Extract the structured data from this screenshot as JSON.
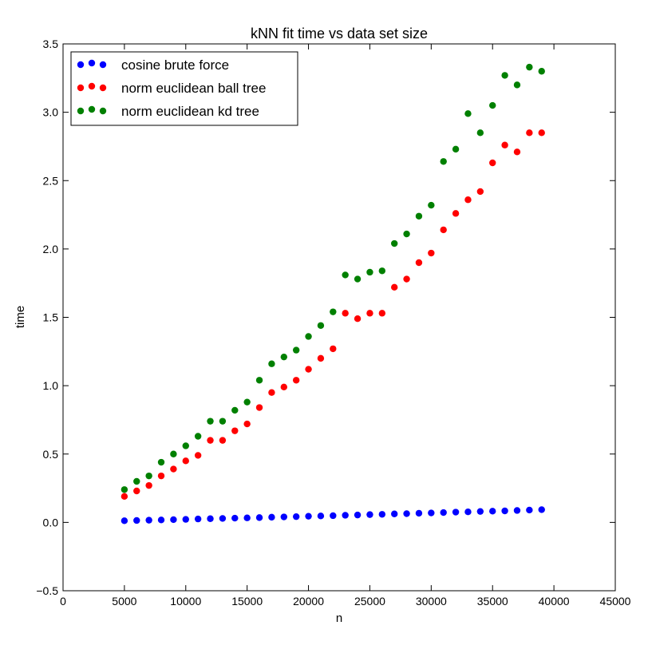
{
  "chart_data": {
    "type": "scatter",
    "title": "kNN fit time vs data set size",
    "xlabel": "n",
    "ylabel": "time",
    "xlim": [
      0,
      45000
    ],
    "ylim": [
      -0.5,
      3.5
    ],
    "xticks": [
      0,
      5000,
      10000,
      15000,
      20000,
      25000,
      30000,
      35000,
      40000,
      45000
    ],
    "yticks": [
      -0.5,
      0.0,
      0.5,
      1.0,
      1.5,
      2.0,
      2.5,
      3.0,
      3.5
    ],
    "ytick_labels": [
      "−0.5",
      "0.0",
      "0.5",
      "1.0",
      "1.5",
      "2.0",
      "2.5",
      "3.0",
      "3.5"
    ],
    "grid": false,
    "legend_position": "top-left",
    "x": [
      5000,
      6000,
      7000,
      8000,
      9000,
      10000,
      11000,
      12000,
      13000,
      14000,
      15000,
      16000,
      17000,
      18000,
      19000,
      20000,
      21000,
      22000,
      23000,
      24000,
      25000,
      26000,
      27000,
      28000,
      29000,
      30000,
      31000,
      32000,
      33000,
      34000,
      35000,
      36000,
      37000,
      38000,
      39000
    ],
    "series": [
      {
        "name": "cosine brute force",
        "color": "#0000ff",
        "values": [
          0.012,
          0.014,
          0.016,
          0.018,
          0.02,
          0.022,
          0.025,
          0.027,
          0.029,
          0.031,
          0.033,
          0.035,
          0.038,
          0.04,
          0.042,
          0.045,
          0.047,
          0.049,
          0.052,
          0.054,
          0.057,
          0.059,
          0.062,
          0.064,
          0.067,
          0.069,
          0.072,
          0.075,
          0.077,
          0.08,
          0.082,
          0.084,
          0.087,
          0.09,
          0.093
        ]
      },
      {
        "name": "norm euclidean ball tree",
        "color": "#ff0000",
        "values": [
          0.19,
          0.23,
          0.27,
          0.34,
          0.39,
          0.45,
          0.49,
          0.6,
          0.6,
          0.67,
          0.72,
          0.84,
          0.95,
          0.99,
          1.04,
          1.12,
          1.2,
          1.27,
          1.53,
          1.49,
          1.53,
          1.53,
          1.72,
          1.78,
          1.9,
          1.97,
          2.14,
          2.26,
          2.36,
          2.42,
          2.63,
          2.76,
          2.71,
          2.85,
          2.85
        ]
      },
      {
        "name": "norm euclidean kd tree",
        "color": "#008000",
        "values": [
          0.24,
          0.3,
          0.34,
          0.44,
          0.5,
          0.56,
          0.63,
          0.74,
          0.74,
          0.82,
          0.88,
          1.04,
          1.16,
          1.21,
          1.26,
          1.36,
          1.44,
          1.54,
          1.81,
          1.78,
          1.83,
          1.84,
          2.04,
          2.11,
          2.24,
          2.32,
          2.64,
          2.73,
          2.99,
          2.85,
          3.05,
          3.27,
          3.2,
          3.33,
          3.3
        ]
      }
    ]
  }
}
